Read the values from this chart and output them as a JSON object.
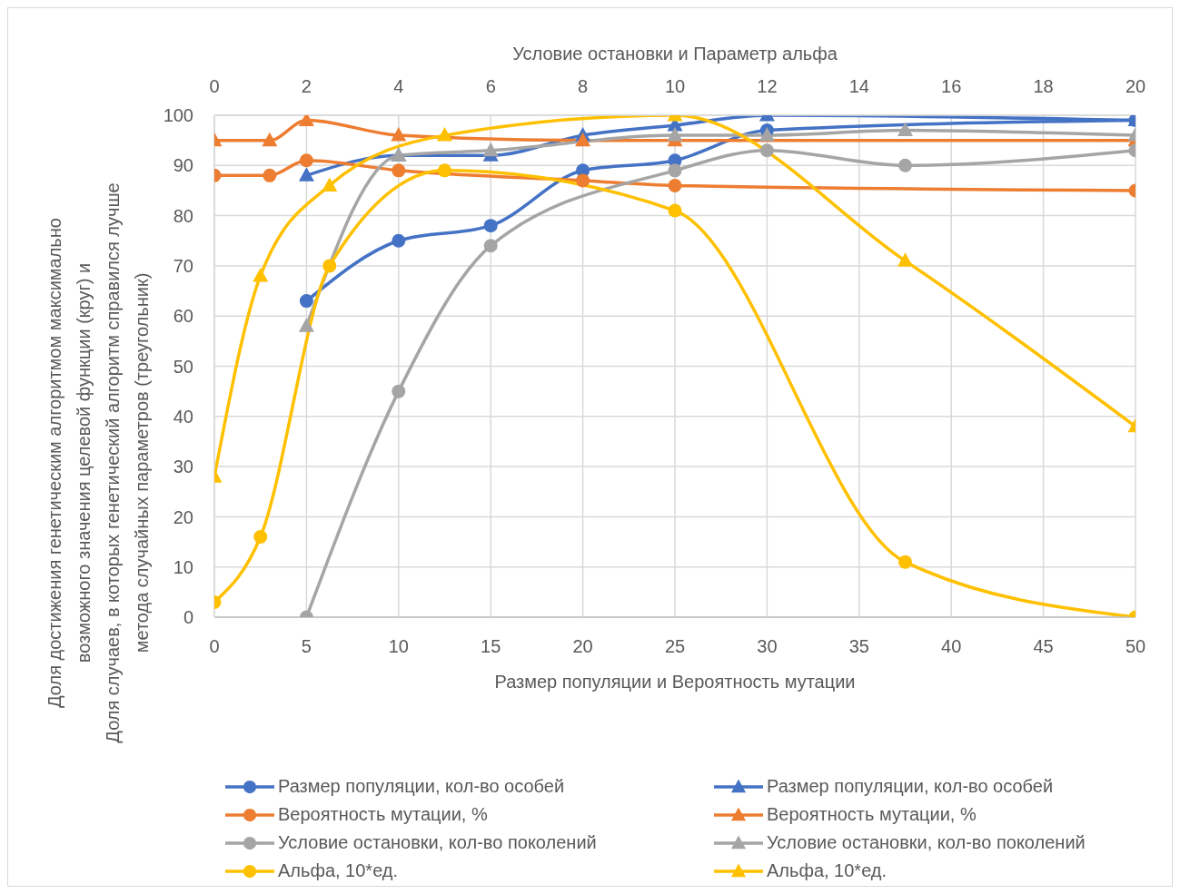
{
  "chart_data": {
    "type": "line",
    "xlabel": "Размер популяции и Вероятность мутации",
    "x2label": "Условие остановки и Параметр альфа",
    "ylabel": "Доля достижения генетическим алгоритмом максимально возможного значения целевой функции (круг) и\nДоля случаев, в которых генетический алгоритм справился лучше метода случайных параметров (треугольник)",
    "xlim": [
      0,
      50
    ],
    "xticks": [
      0,
      5,
      10,
      15,
      20,
      25,
      30,
      35,
      40,
      45,
      50
    ],
    "x2lim": [
      0,
      20
    ],
    "x2ticks": [
      0,
      2,
      4,
      6,
      8,
      10,
      12,
      14,
      16,
      18,
      20
    ],
    "ylim": [
      0,
      100
    ],
    "yticks": [
      0,
      10,
      20,
      30,
      40,
      50,
      60,
      70,
      80,
      90,
      100
    ],
    "grid": true,
    "legend": "bottom",
    "series": [
      {
        "name": "Размер популяции, кол-во особей",
        "color": "#4472c4",
        "marker": "circle",
        "x": [
          5,
          10,
          15,
          20,
          25,
          30,
          50
        ],
        "values": [
          63,
          75,
          78,
          89,
          91,
          97,
          99
        ]
      },
      {
        "name": "Размер популяции, кол-во особей",
        "color": "#4472c4",
        "marker": "triangle",
        "x": [
          5,
          10,
          15,
          20,
          25,
          30,
          50
        ],
        "values": [
          88,
          92,
          92,
          96,
          98,
          100,
          99
        ]
      },
      {
        "name": "Вероятность мутации, %",
        "color": "#ed7d31",
        "marker": "circle",
        "x": [
          0,
          3,
          5,
          10,
          20,
          25,
          50
        ],
        "values": [
          88,
          88,
          91,
          89,
          87,
          86,
          85
        ]
      },
      {
        "name": "Вероятность мутации, %",
        "color": "#ed7d31",
        "marker": "triangle",
        "x": [
          0,
          3,
          5,
          10,
          20,
          25,
          50
        ],
        "values": [
          95,
          95,
          99,
          96,
          95,
          95,
          95
        ]
      },
      {
        "name": "Условие остановки, кол-во поколений",
        "color": "#a5a5a5",
        "marker": "circle",
        "axis": "x2",
        "x": [
          2,
          4,
          6,
          10,
          12,
          15,
          20
        ],
        "values": [
          0,
          45,
          74,
          89,
          93,
          90,
          93
        ]
      },
      {
        "name": "Условие остановки, кол-во поколений",
        "color": "#a5a5a5",
        "marker": "triangle",
        "axis": "x2",
        "x": [
          2,
          4,
          6,
          10,
          12,
          15,
          20
        ],
        "values": [
          58,
          92,
          93,
          96,
          96,
          97,
          96
        ]
      },
      {
        "name": "Альфа, 10*ед.",
        "color": "#ffc000",
        "marker": "circle",
        "axis": "x2",
        "x": [
          0,
          1,
          2.5,
          5,
          10,
          15,
          20
        ],
        "values": [
          3,
          16,
          70,
          89,
          81,
          11,
          0
        ]
      },
      {
        "name": "Альфа, 10*ед.",
        "color": "#ffc000",
        "marker": "triangle",
        "axis": "x2",
        "x": [
          0,
          1,
          2.5,
          5,
          10,
          15,
          20
        ],
        "values": [
          28,
          68,
          86,
          96,
          100,
          71,
          38
        ]
      }
    ]
  }
}
